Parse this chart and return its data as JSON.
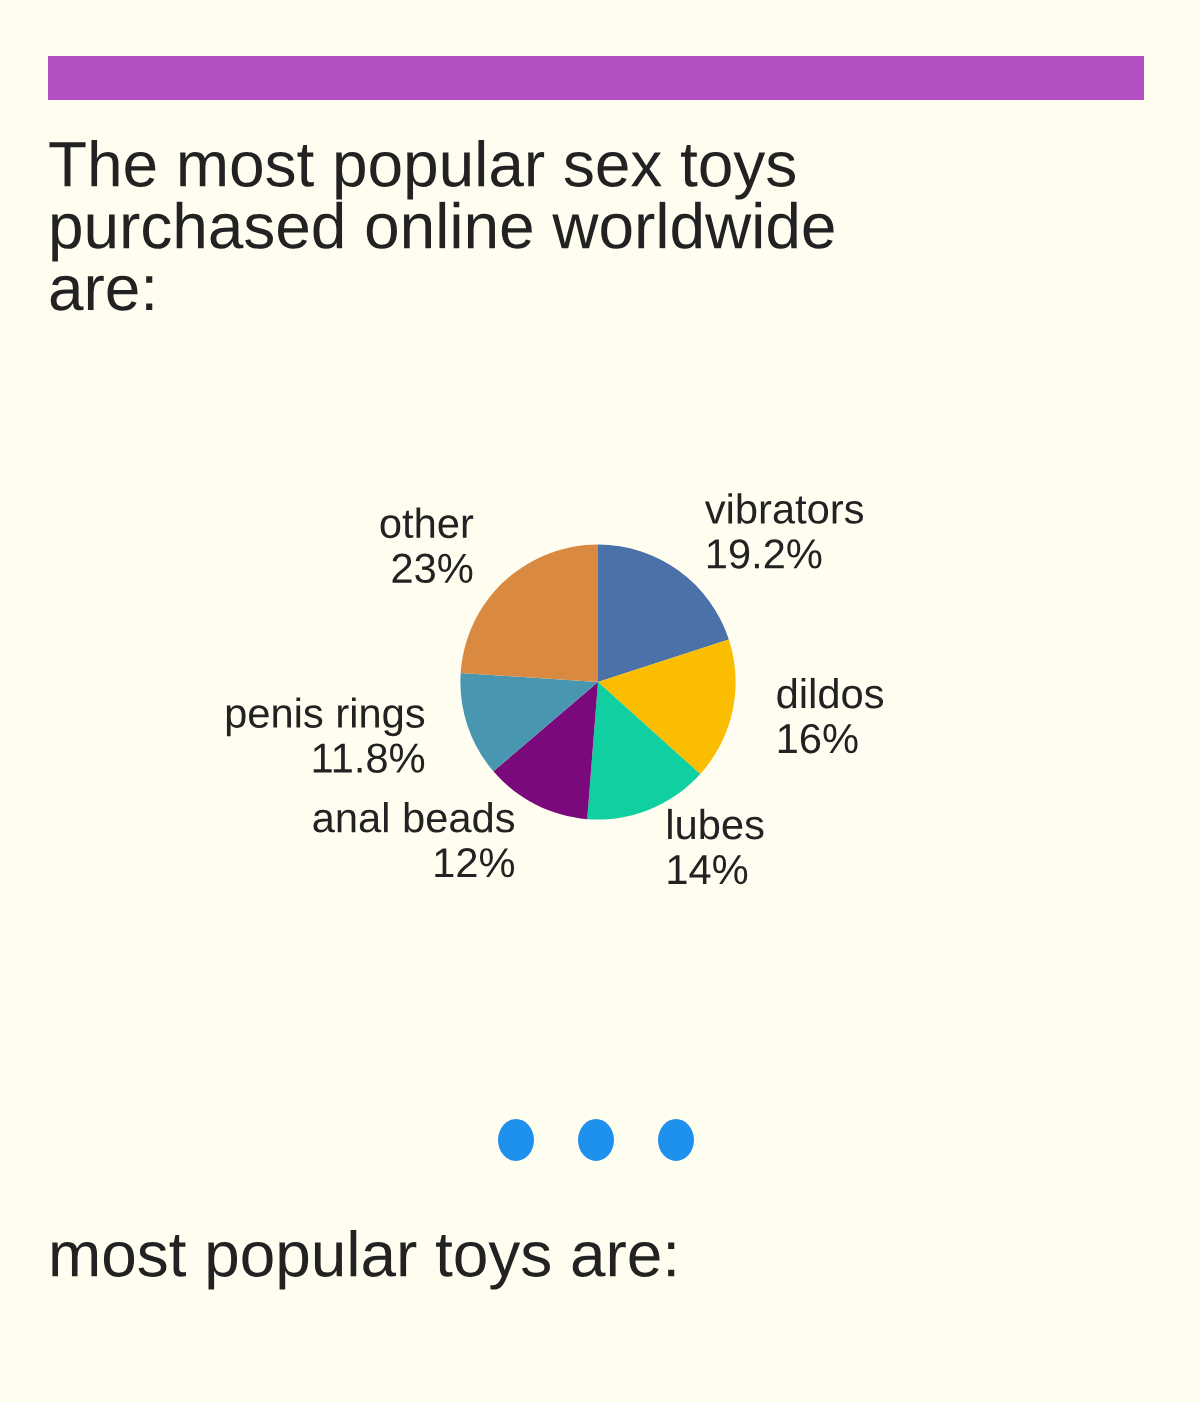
{
  "chart_data": {
    "type": "pie",
    "title": "The most popular sex toys\npurchased online worldwide\nare:",
    "categories": [
      "vibrators",
      "dildos",
      "lubes",
      "anal beads",
      "penis rings",
      "other"
    ],
    "values": [
      19.2,
      16,
      14,
      12,
      11.8,
      23
    ],
    "value_labels": [
      "19.2%",
      "16%",
      "14%",
      "12%",
      "11.8%",
      "23%"
    ],
    "colors": [
      "#4a72a8",
      "#fbbd00",
      "#10cfa0",
      "#7a0a7c",
      "#4896b0",
      "#d98a40"
    ],
    "annotations": [
      "most popular toys are:"
    ]
  }
}
